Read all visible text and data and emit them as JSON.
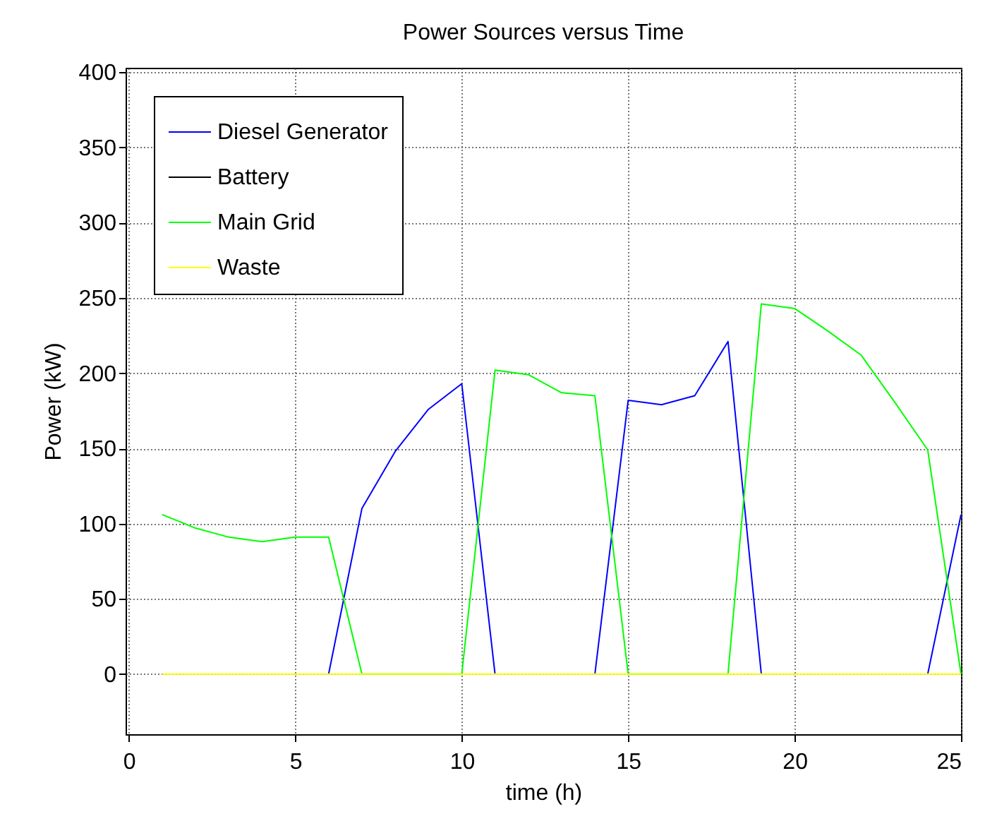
{
  "chart_data": {
    "type": "line",
    "title": "Power Sources versus Time",
    "xlabel": "time (h)",
    "ylabel": "Power (kW)",
    "x": [
      1,
      2,
      3,
      4,
      5,
      6,
      7,
      8,
      9,
      10,
      11,
      12,
      13,
      14,
      15,
      16,
      17,
      18,
      19,
      20,
      21,
      22,
      23,
      24,
      25
    ],
    "series": [
      {
        "name": "Diesel Generator",
        "color": "#0000ff",
        "values": [
          null,
          null,
          null,
          null,
          null,
          0,
          110,
          148,
          176,
          193,
          0,
          null,
          null,
          0,
          182,
          179,
          185,
          221,
          0,
          null,
          null,
          null,
          null,
          0,
          106
        ]
      },
      {
        "name": "Battery",
        "color": "#000000",
        "values": [
          null,
          null,
          null,
          null,
          null,
          null,
          null,
          null,
          null,
          null,
          null,
          null,
          null,
          null,
          null,
          null,
          null,
          null,
          null,
          null,
          null,
          null,
          null,
          null,
          null
        ]
      },
      {
        "name": "Main Grid",
        "color": "#00ff00",
        "values": [
          106,
          97,
          91,
          88,
          91,
          91,
          0,
          0,
          0,
          0,
          202,
          199,
          187,
          185,
          0,
          0,
          0,
          0,
          246,
          243,
          228,
          212,
          181,
          149,
          0
        ]
      },
      {
        "name": "Waste",
        "color": "#ffff00",
        "values": [
          0,
          0,
          0,
          0,
          0,
          0,
          0,
          0,
          0,
          0,
          0,
          0,
          0,
          0,
          0,
          0,
          0,
          0,
          0,
          0,
          0,
          0,
          0,
          0,
          0
        ]
      }
    ],
    "xlim": [
      -0.1,
      25
    ],
    "xticks": [
      0,
      5,
      10,
      15,
      20,
      25
    ],
    "ylim": [
      -40,
      403
    ],
    "yticks": [
      0,
      50,
      100,
      150,
      200,
      250,
      300,
      350,
      400
    ],
    "grid": true,
    "legend": "top left",
    "marker": "none",
    "line_style": "solid"
  }
}
